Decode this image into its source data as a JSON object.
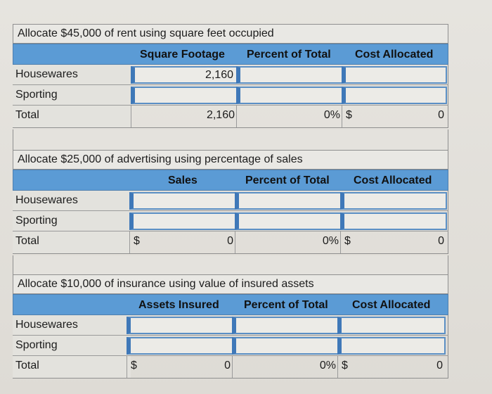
{
  "sections": [
    {
      "caption": "Allocate $45,000 of rent using square feet occupied",
      "headers": [
        "Square Footage",
        "Percent of Total",
        "Cost Allocated"
      ],
      "rows": [
        {
          "label": "Housewares",
          "basis": "2,160",
          "percent": "",
          "cost": ""
        },
        {
          "label": "Sporting",
          "basis": "",
          "percent": "",
          "cost": ""
        }
      ],
      "total": {
        "label": "Total",
        "basis_dollar": "",
        "basis": "2,160",
        "percent": "0%",
        "cost_dollar": "$",
        "cost": "0"
      }
    },
    {
      "caption": "Allocate $25,000 of advertising using percentage of sales",
      "headers": [
        "Sales",
        "Percent of Total",
        "Cost Allocated"
      ],
      "rows": [
        {
          "label": "Housewares",
          "basis": "",
          "percent": "",
          "cost": ""
        },
        {
          "label": "Sporting",
          "basis": "",
          "percent": "",
          "cost": ""
        }
      ],
      "total": {
        "label": "Total",
        "basis_dollar": "$",
        "basis": "0",
        "percent": "0%",
        "cost_dollar": "$",
        "cost": "0"
      }
    },
    {
      "caption": "Allocate $10,000 of insurance using value of insured assets",
      "headers": [
        "Assets Insured",
        "Percent of Total",
        "Cost Allocated"
      ],
      "rows": [
        {
          "label": "Housewares",
          "basis": "",
          "percent": "",
          "cost": ""
        },
        {
          "label": "Sporting",
          "basis": "",
          "percent": "",
          "cost": ""
        }
      ],
      "total": {
        "label": "Total",
        "basis_dollar": "$",
        "basis": "0",
        "percent": "0%",
        "cost_dollar": "$",
        "cost": "0"
      }
    }
  ],
  "colors": {
    "header_blue": "#5b9bd5",
    "input_border": "#3f78b8"
  }
}
